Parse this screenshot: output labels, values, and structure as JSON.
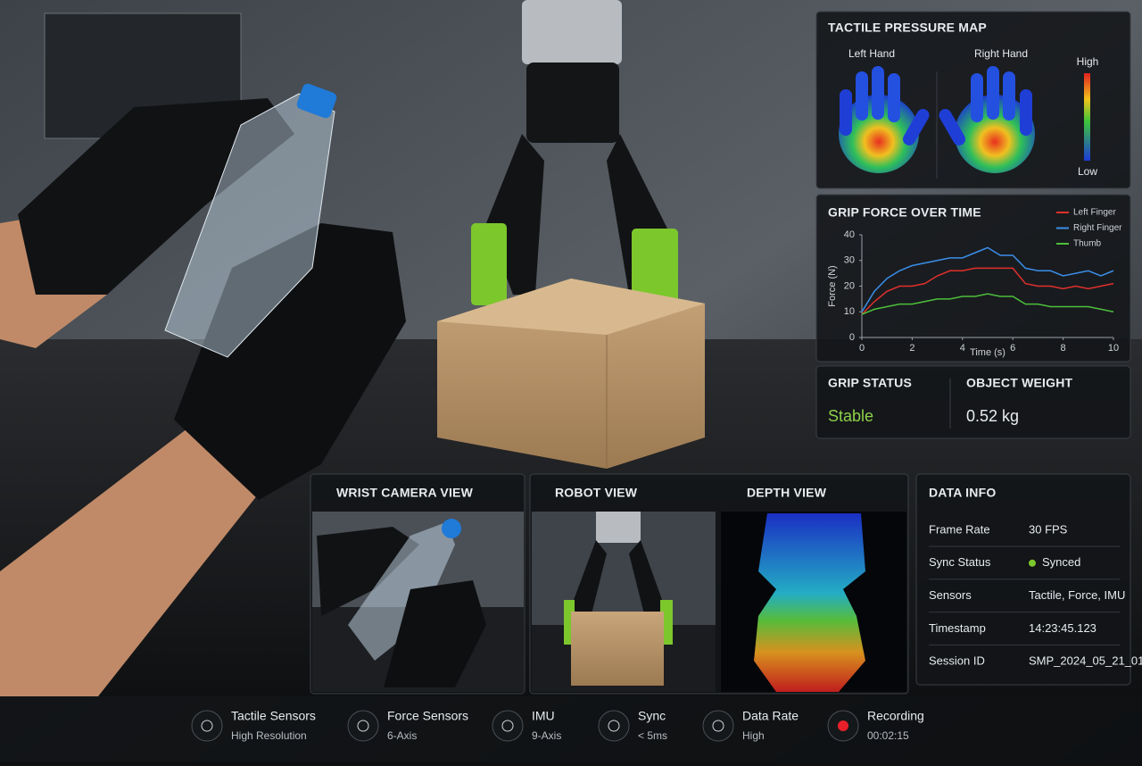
{
  "tactile_map": {
    "title": "TACTILE PRESSURE MAP",
    "left_label": "Left Hand",
    "right_label": "Right Hand",
    "scale_high": "High",
    "scale_low": "Low"
  },
  "chart_data": {
    "type": "line",
    "title": "GRIP FORCE OVER TIME",
    "x_label": "Time (s)",
    "y_label": "Force (N)",
    "x": [
      0,
      0.5,
      1,
      1.5,
      2,
      2.5,
      3,
      3.5,
      4,
      4.5,
      5,
      5.5,
      6,
      6.5,
      7,
      7.5,
      8,
      8.5,
      9,
      9.5,
      10
    ],
    "series": [
      {
        "name": "Left Finger",
        "color": "#e0302c",
        "values": [
          9,
          14,
          18,
          20,
          20,
          21,
          24,
          26,
          26,
          27,
          27,
          27,
          27,
          21,
          20,
          20,
          19,
          20,
          19,
          20,
          21
        ]
      },
      {
        "name": "Right Finger",
        "color": "#3a8ee8",
        "values": [
          10,
          18,
          23,
          26,
          28,
          29,
          30,
          31,
          31,
          33,
          35,
          32,
          32,
          27,
          26,
          26,
          24,
          25,
          26,
          24,
          26
        ]
      },
      {
        "name": "Thumb",
        "color": "#4cbf3a",
        "values": [
          9,
          11,
          12,
          13,
          13,
          14,
          15,
          15,
          16,
          16,
          17,
          16,
          16,
          13,
          13,
          12,
          12,
          12,
          12,
          11,
          10
        ]
      }
    ],
    "xlim": [
      0,
      10
    ],
    "ylim": [
      0,
      40
    ],
    "xticks": [
      0,
      2,
      4,
      6,
      8,
      10
    ],
    "yticks": [
      0,
      10,
      20,
      30,
      40
    ],
    "grid": false
  },
  "status": {
    "grip_title": "GRIP STATUS",
    "grip_value": "Stable",
    "weight_title": "OBJECT WEIGHT",
    "weight_value": "0.52 kg"
  },
  "views": {
    "wrist": "WRIST CAMERA VIEW",
    "robot": "ROBOT VIEW",
    "depth": "DEPTH VIEW"
  },
  "data_info": {
    "title": "DATA INFO",
    "rows": [
      [
        "Frame Rate",
        "30 FPS"
      ],
      [
        "Sync Status",
        "Synced"
      ],
      [
        "Sensors",
        "Tactile, Force, IMU"
      ],
      [
        "Timestamp",
        "14:23:45.123"
      ],
      [
        "Session ID",
        "SMP_2024_05_21_01"
      ]
    ]
  },
  "bottom_bar": [
    {
      "title": "Tactile Sensors",
      "detail": "High Resolution"
    },
    {
      "title": "Force Sensors",
      "detail": "6-Axis"
    },
    {
      "title": "IMU",
      "detail": "9-Axis"
    },
    {
      "title": "Sync",
      "detail": "< 5ms"
    },
    {
      "title": "Data Rate",
      "detail": "High"
    },
    {
      "title": "Recording",
      "detail": "00:02:15"
    }
  ]
}
